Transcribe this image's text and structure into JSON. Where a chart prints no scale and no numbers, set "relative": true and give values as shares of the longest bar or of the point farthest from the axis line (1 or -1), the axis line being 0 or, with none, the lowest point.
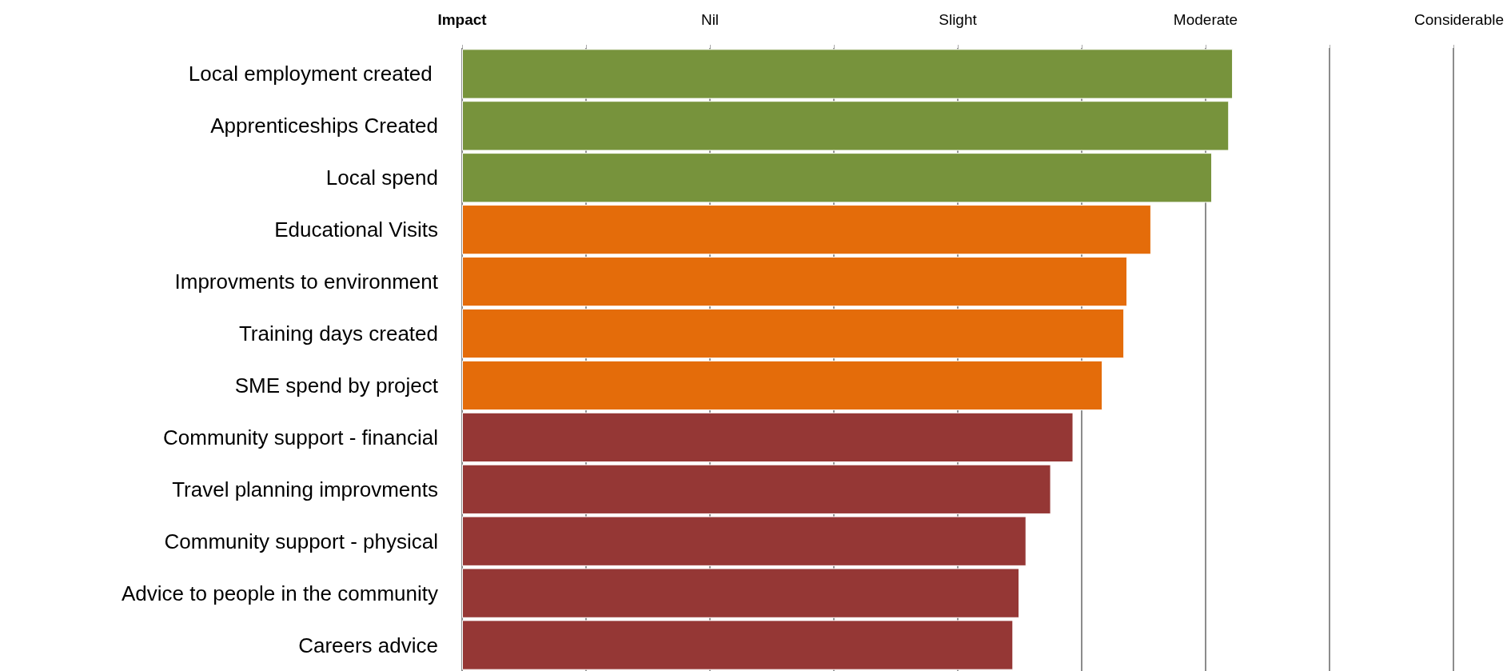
{
  "chart_data": {
    "type": "bar",
    "orientation": "horizontal",
    "relative": true,
    "categories": [
      "Local employment created ",
      "Apprenticeships Created",
      "Local spend",
      "Educational Visits",
      "Improvments to environment",
      "Training days created",
      "SME spend by project",
      "Community support - financial",
      "Travel planning improvments",
      "Community support - physical",
      "Advice to people in the community",
      "Careers advice"
    ],
    "values": [
      1,
      0.995,
      0.973,
      0.894,
      0.863,
      0.859,
      0.831,
      0.793,
      0.764,
      0.732,
      0.723,
      0.715
    ],
    "colors": [
      "#77933c",
      "#77933c",
      "#77933c",
      "#e46c0a",
      "#e46c0a",
      "#e46c0a",
      "#e46c0a",
      "#953735",
      "#953735",
      "#953735",
      "#953735",
      "#953735"
    ],
    "annotations": [
      "Impact",
      "Nil",
      "Slight",
      "Moderate",
      "Considerable"
    ],
    "grid": "x"
  }
}
